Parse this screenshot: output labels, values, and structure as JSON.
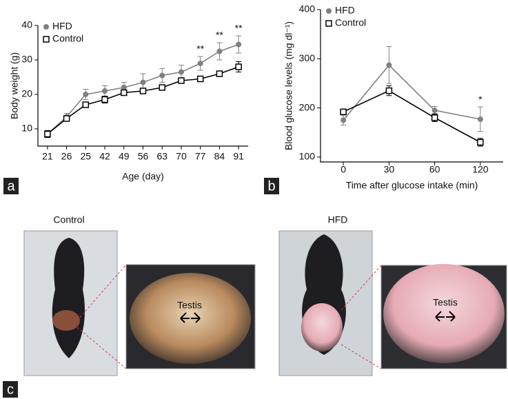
{
  "chart_data": [
    {
      "type": "line",
      "panel_label": "a",
      "x_label": "Age (day)",
      "y_label": "Body weight (g)",
      "categories": [
        "21",
        "26",
        "25",
        "42",
        "49",
        "56",
        "63",
        "70",
        "77",
        "84",
        "91"
      ],
      "series": [
        {
          "name": "HFD",
          "color": "#808080",
          "marker": "circle",
          "values": [
            8.5,
            13.5,
            20,
            21,
            22,
            23.5,
            25.5,
            26.5,
            29,
            32.5,
            34.5
          ],
          "errors": [
            1,
            1,
            1.5,
            1.5,
            1.5,
            2.5,
            2,
            2,
            2,
            2.5,
            2.5
          ]
        },
        {
          "name": "Control",
          "color": "#000000",
          "marker": "square",
          "values": [
            8.5,
            13,
            17,
            18.5,
            20.5,
            21,
            22,
            24,
            24.5,
            26,
            28
          ],
          "errors": [
            1,
            0.8,
            0.8,
            1,
            0.5,
            0.5,
            0.5,
            0.8,
            0.5,
            0.5,
            1.5
          ]
        }
      ],
      "significance": [
        null,
        null,
        null,
        null,
        null,
        null,
        null,
        null,
        "**",
        "**",
        "**"
      ],
      "ylim": [
        5,
        40
      ],
      "yticks": [
        10,
        20,
        30,
        40
      ],
      "legend": "upper left"
    },
    {
      "type": "line",
      "panel_label": "b",
      "x_label": "Time after glucose intake (min)",
      "y_label": "Blood glucose levels (mg dl⁻¹)",
      "categories": [
        "0",
        "30",
        "60",
        "120"
      ],
      "series": [
        {
          "name": "HFD",
          "color": "#808080",
          "marker": "circle",
          "values": [
            175,
            287,
            195,
            177
          ],
          "errors": [
            10,
            38,
            8,
            25
          ]
        },
        {
          "name": "Control",
          "color": "#000000",
          "marker": "square",
          "values": [
            192,
            235,
            180,
            130
          ],
          "errors": [
            5,
            10,
            8,
            8
          ]
        }
      ],
      "significance": [
        null,
        null,
        null,
        "*"
      ],
      "ylim": [
        90,
        400
      ],
      "yticks": [
        100,
        200,
        300,
        400
      ],
      "legend": "upper left"
    }
  ],
  "photos": {
    "panel_label": "c",
    "control_label": "Control",
    "hfd_label": "HFD",
    "control_zoom_label": "Testis",
    "hfd_zoom_label": "Testis"
  }
}
